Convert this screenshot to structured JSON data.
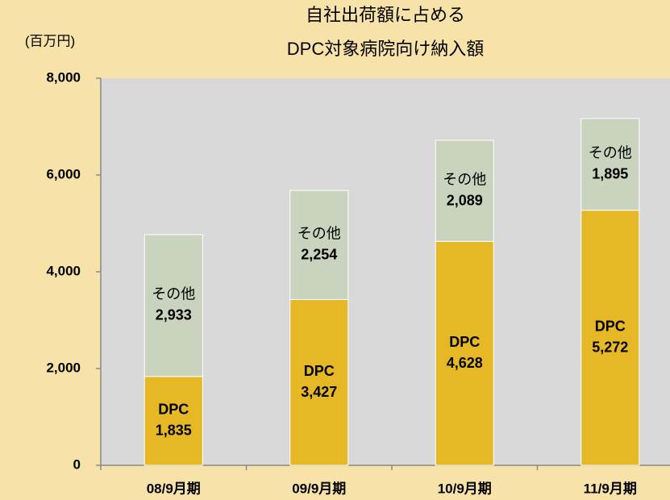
{
  "chart_data": {
    "type": "stacked_bar",
    "title": [
      "自社出荷額に占める",
      "DPC対象病院向け納入額"
    ],
    "y_label": "(百万円)",
    "categories": [
      "08/9月期",
      "09/9月期",
      "10/9月期",
      "11/9月期"
    ],
    "series": [
      {
        "name": "DPC",
        "color": "#e6b826",
        "values": [
          1835,
          3427,
          4628,
          5272
        ],
        "value_labels": [
          "1,835",
          "3,427",
          "4,628",
          "5,272"
        ]
      },
      {
        "name": "その他",
        "color": "#c9d3bd",
        "values": [
          2933,
          2254,
          2089,
          1895
        ],
        "value_labels": [
          "2,933",
          "2,254",
          "2,089",
          "1,895"
        ]
      }
    ],
    "ylim": [
      0,
      8000
    ],
    "yticks": [
      0,
      {
        "value": 2000,
        "label": "2,000"
      },
      {
        "value": 4000,
        "label": "4,000"
      },
      {
        "value": 6000,
        "label": "6,000"
      },
      {
        "value": 8000,
        "label": "8,000"
      }
    ],
    "grid": false
  }
}
